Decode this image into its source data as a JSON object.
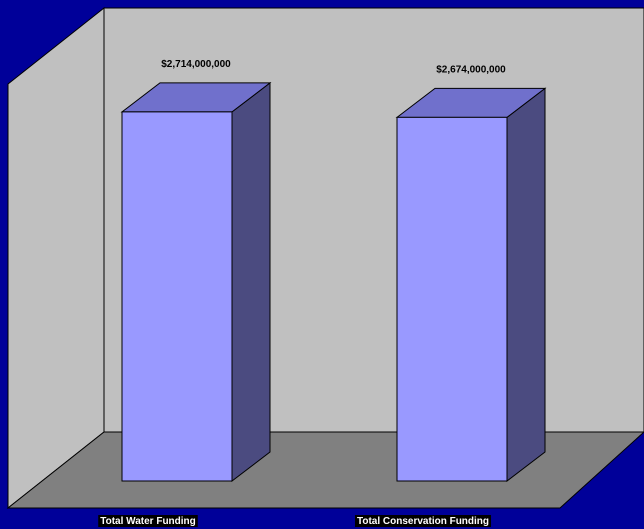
{
  "chart_data": {
    "type": "bar",
    "categories": [
      "Total Water Funding",
      "Total Conservation Funding"
    ],
    "values": [
      2714000000,
      2674000000
    ],
    "data_labels": [
      "$2,714,000,000",
      "$2,674,000,000"
    ],
    "title": "",
    "xlabel": "",
    "ylabel": "",
    "ylim": [
      0,
      3000000000
    ],
    "grid": false,
    "legend": "none",
    "style": "3d-column"
  },
  "colors": {
    "background": "#000099",
    "back_wall": "#c0c0c0",
    "side_wall": "#c0c0c0",
    "floor": "#808080",
    "bar_front": "#9999ff",
    "bar_top": "#7070cc",
    "bar_side": "#4b4b80",
    "data_label_text": "#000000",
    "category_label_text": "#ffffff",
    "category_label_bg": "#000000"
  }
}
